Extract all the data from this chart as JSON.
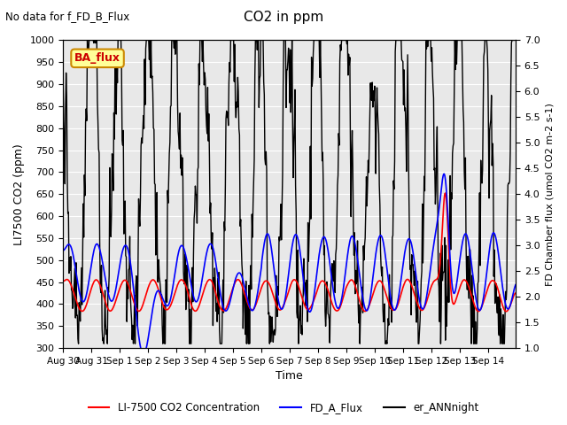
{
  "title": "CO2 in ppm",
  "subtitle": "No data for f_FD_B_Flux",
  "ylabel_left": "LI7500 CO2 (ppm)",
  "ylabel_right": "FD Chamber flux (umol CO2 m-2 s-1)",
  "xlabel": "Time",
  "ylim_left": [
    300,
    1000
  ],
  "ylim_right": [
    1.0,
    7.0
  ],
  "yticks_left": [
    300,
    350,
    400,
    450,
    500,
    550,
    600,
    650,
    700,
    750,
    800,
    850,
    900,
    950,
    1000
  ],
  "yticks_right": [
    1.0,
    1.5,
    2.0,
    2.5,
    3.0,
    3.5,
    4.0,
    4.5,
    5.0,
    5.5,
    6.0,
    6.5,
    7.0
  ],
  "legend_items": [
    {
      "label": "LI-7500 CO2 Concentration",
      "color": "#ff0000",
      "lw": 1.2,
      "ls": "-"
    },
    {
      "label": "FD_A_Flux",
      "color": "#0000ff",
      "lw": 1.2,
      "ls": "-"
    },
    {
      "label": "er_ANNnight",
      "color": "#000000",
      "lw": 1.0,
      "ls": "-"
    }
  ],
  "annotation_text": "BA_flux",
  "annotation_color": "#cc0000",
  "annotation_bg": "#ffff99",
  "annotation_border": "#cc8800",
  "bg_color": "#e8e8e8",
  "grid_color": "#ffffff",
  "seed": 42
}
